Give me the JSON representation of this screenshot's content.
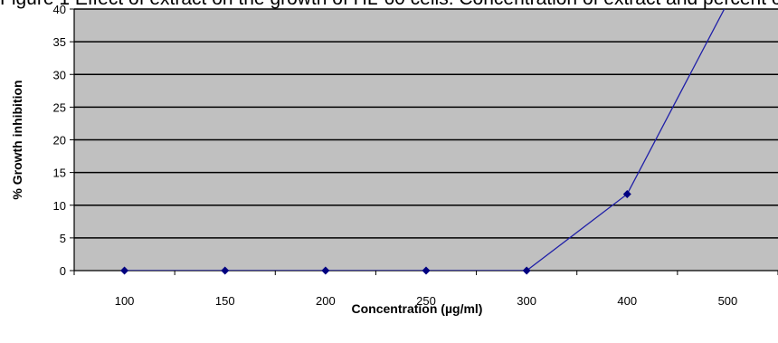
{
  "caption_fragment": "Figure 1 Effect of extract on the growth of HL-60 cells. Concentration of extract and percent of inhibition in the assay",
  "chart_data": {
    "type": "line",
    "title": "",
    "xlabel": "Concentration  (µg/ml)",
    "ylabel": "% Growth inhibition",
    "categories": [
      "100",
      "150",
      "200",
      "250",
      "300",
      "400",
      "500"
    ],
    "series": [
      {
        "values": [
          0,
          0,
          0,
          0,
          0,
          11.7,
          41
        ]
      }
    ],
    "ylim": [
      0,
      40
    ],
    "yticks": [
      0,
      5,
      10,
      15,
      20,
      25,
      30,
      35,
      40
    ],
    "grid": true,
    "legend": "none",
    "colors": {
      "plot_background": "#c0c0c0",
      "gridline": "#000000",
      "series_line": "#1f1fa8",
      "marker": "#000080"
    }
  }
}
